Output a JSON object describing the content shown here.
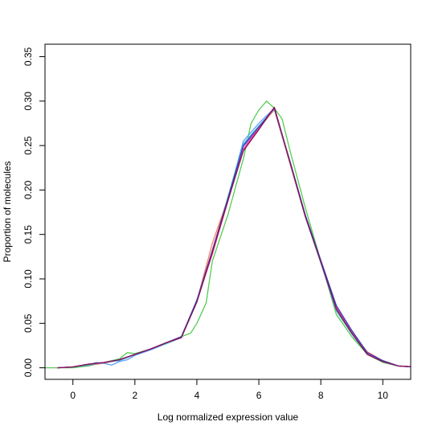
{
  "chart_data": {
    "type": "line",
    "title": "",
    "xlabel": "Log normalized expression value",
    "ylabel": "Proportion of molecules",
    "xlim": [
      -0.9,
      10.9
    ],
    "ylim": [
      -0.013,
      0.364
    ],
    "x_ticks": [
      0,
      2,
      4,
      6,
      8,
      10
    ],
    "x_tick_labels": [
      "0",
      "2",
      "4",
      "6",
      "8",
      "10"
    ],
    "y_ticks": [
      0.0,
      0.05,
      0.1,
      0.15,
      0.2,
      0.25,
      0.3,
      0.35
    ],
    "y_tick_labels": [
      "0.00",
      "0.05",
      "0.10",
      "0.15",
      "0.20",
      "0.25",
      "0.30",
      "0.35"
    ],
    "grid": false,
    "legend": "none",
    "series": [
      {
        "color": "#55cc55",
        "points": [
          [
            -1.0,
            0.0
          ],
          [
            -0.5,
            0.0
          ],
          [
            0.0,
            0.0
          ],
          [
            0.5,
            0.002
          ],
          [
            1.0,
            0.006
          ],
          [
            1.5,
            0.01
          ],
          [
            1.75,
            0.017
          ],
          [
            2.0,
            0.016
          ],
          [
            2.5,
            0.021
          ],
          [
            3.0,
            0.027
          ],
          [
            3.5,
            0.035
          ],
          [
            3.8,
            0.039
          ],
          [
            4.0,
            0.05
          ],
          [
            4.3,
            0.073
          ],
          [
            4.5,
            0.12
          ],
          [
            5.0,
            0.172
          ],
          [
            5.5,
            0.235
          ],
          [
            5.75,
            0.275
          ],
          [
            6.0,
            0.29
          ],
          [
            6.25,
            0.3
          ],
          [
            6.5,
            0.292
          ],
          [
            6.75,
            0.28
          ],
          [
            7.0,
            0.245
          ],
          [
            7.5,
            0.18
          ],
          [
            8.0,
            0.12
          ],
          [
            8.5,
            0.06
          ],
          [
            9.0,
            0.035
          ],
          [
            9.5,
            0.015
          ],
          [
            10.0,
            0.006
          ],
          [
            10.5,
            0.002
          ],
          [
            11.0,
            0.001
          ]
        ]
      },
      {
        "color": "#ff7f66",
        "points": [
          [
            -0.5,
            0.0
          ],
          [
            0.0,
            0.001
          ],
          [
            0.5,
            0.003
          ],
          [
            1.0,
            0.005
          ],
          [
            1.5,
            0.009
          ],
          [
            2.0,
            0.015
          ],
          [
            2.5,
            0.021
          ],
          [
            3.0,
            0.028
          ],
          [
            3.5,
            0.035
          ],
          [
            4.0,
            0.075
          ],
          [
            4.5,
            0.14
          ],
          [
            5.0,
            0.19
          ],
          [
            5.5,
            0.245
          ],
          [
            6.0,
            0.27
          ],
          [
            6.5,
            0.29
          ],
          [
            7.0,
            0.23
          ],
          [
            7.5,
            0.17
          ],
          [
            8.0,
            0.12
          ],
          [
            8.5,
            0.07
          ],
          [
            9.0,
            0.04
          ],
          [
            9.5,
            0.018
          ],
          [
            10.0,
            0.008
          ],
          [
            10.5,
            0.002
          ],
          [
            11.0,
            0.001
          ]
        ]
      },
      {
        "color": "#5aa0ff",
        "points": [
          [
            -0.5,
            0.0
          ],
          [
            0.0,
            0.001
          ],
          [
            0.5,
            0.003
          ],
          [
            0.75,
            0.006
          ],
          [
            1.0,
            0.005
          ],
          [
            1.25,
            0.003
          ],
          [
            1.5,
            0.007
          ],
          [
            1.75,
            0.009
          ],
          [
            2.0,
            0.014
          ],
          [
            2.5,
            0.02
          ],
          [
            3.0,
            0.027
          ],
          [
            3.5,
            0.034
          ],
          [
            4.0,
            0.075
          ],
          [
            4.5,
            0.13
          ],
          [
            5.0,
            0.19
          ],
          [
            5.5,
            0.255
          ],
          [
            6.0,
            0.275
          ],
          [
            6.5,
            0.292
          ],
          [
            7.0,
            0.232
          ],
          [
            7.5,
            0.17
          ],
          [
            8.0,
            0.118
          ],
          [
            8.5,
            0.066
          ],
          [
            9.0,
            0.04
          ],
          [
            9.5,
            0.016
          ],
          [
            10.0,
            0.007
          ],
          [
            10.5,
            0.002
          ],
          [
            11.0,
            0.001
          ]
        ]
      },
      {
        "color": "#44bbcc",
        "points": [
          [
            -0.5,
            0.0
          ],
          [
            0.0,
            0.001
          ],
          [
            0.5,
            0.003
          ],
          [
            1.0,
            0.006
          ],
          [
            1.5,
            0.008
          ],
          [
            2.0,
            0.015
          ],
          [
            2.5,
            0.021
          ],
          [
            3.0,
            0.027
          ],
          [
            3.5,
            0.034
          ],
          [
            4.0,
            0.074
          ],
          [
            4.5,
            0.13
          ],
          [
            5.0,
            0.192
          ],
          [
            5.5,
            0.252
          ],
          [
            6.0,
            0.272
          ],
          [
            6.5,
            0.291
          ],
          [
            7.0,
            0.231
          ],
          [
            7.5,
            0.17
          ],
          [
            8.0,
            0.118
          ],
          [
            8.5,
            0.064
          ],
          [
            9.0,
            0.038
          ],
          [
            9.5,
            0.015
          ],
          [
            10.0,
            0.007
          ],
          [
            10.5,
            0.002
          ],
          [
            11.0,
            0.001
          ]
        ]
      },
      {
        "color": "#9966ff",
        "points": [
          [
            -0.5,
            0.0
          ],
          [
            0.0,
            0.001
          ],
          [
            0.5,
            0.004
          ],
          [
            1.0,
            0.006
          ],
          [
            1.5,
            0.009
          ],
          [
            2.0,
            0.015
          ],
          [
            2.5,
            0.021
          ],
          [
            3.0,
            0.028
          ],
          [
            3.5,
            0.034
          ],
          [
            4.0,
            0.076
          ],
          [
            4.5,
            0.128
          ],
          [
            5.0,
            0.188
          ],
          [
            5.5,
            0.249
          ],
          [
            6.0,
            0.27
          ],
          [
            6.5,
            0.292
          ],
          [
            7.0,
            0.232
          ],
          [
            7.5,
            0.171
          ],
          [
            8.0,
            0.12
          ],
          [
            8.5,
            0.068
          ],
          [
            9.0,
            0.041
          ],
          [
            9.5,
            0.016
          ],
          [
            10.0,
            0.008
          ],
          [
            10.5,
            0.002
          ],
          [
            11.0,
            0.001
          ]
        ]
      },
      {
        "color": "#ff44aa",
        "points": [
          [
            -0.5,
            0.0
          ],
          [
            0.0,
            0.001
          ],
          [
            0.5,
            0.004
          ],
          [
            1.0,
            0.006
          ],
          [
            1.5,
            0.009
          ],
          [
            2.0,
            0.015
          ],
          [
            2.5,
            0.021
          ],
          [
            3.0,
            0.028
          ],
          [
            3.5,
            0.034
          ],
          [
            4.0,
            0.075
          ],
          [
            4.5,
            0.128
          ],
          [
            5.0,
            0.187
          ],
          [
            5.5,
            0.246
          ],
          [
            6.0,
            0.27
          ],
          [
            6.5,
            0.293
          ],
          [
            7.0,
            0.232
          ],
          [
            7.5,
            0.171
          ],
          [
            8.0,
            0.12
          ],
          [
            8.5,
            0.068
          ],
          [
            9.0,
            0.04
          ],
          [
            9.5,
            0.016
          ],
          [
            10.0,
            0.008
          ],
          [
            10.5,
            0.002
          ],
          [
            11.0,
            0.001
          ]
        ]
      },
      {
        "color": "#3344bb",
        "points": [
          [
            -0.5,
            0.0
          ],
          [
            0.0,
            0.001
          ],
          [
            0.5,
            0.004
          ],
          [
            1.0,
            0.006
          ],
          [
            1.5,
            0.009
          ],
          [
            2.0,
            0.015
          ],
          [
            2.5,
            0.021
          ],
          [
            3.0,
            0.028
          ],
          [
            3.5,
            0.035
          ],
          [
            4.0,
            0.076
          ],
          [
            4.5,
            0.132
          ],
          [
            5.0,
            0.19
          ],
          [
            5.5,
            0.25
          ],
          [
            6.0,
            0.271
          ],
          [
            6.5,
            0.292
          ],
          [
            7.0,
            0.233
          ],
          [
            7.5,
            0.172
          ],
          [
            8.0,
            0.121
          ],
          [
            8.5,
            0.07
          ],
          [
            9.0,
            0.042
          ],
          [
            9.5,
            0.017
          ],
          [
            10.0,
            0.008
          ],
          [
            10.5,
            0.002
          ],
          [
            11.0,
            0.001
          ]
        ]
      },
      {
        "color": "#881155",
        "points": [
          [
            -0.5,
            0.0
          ],
          [
            0.0,
            0.001
          ],
          [
            0.5,
            0.004
          ],
          [
            1.0,
            0.006
          ],
          [
            1.5,
            0.009
          ],
          [
            2.0,
            0.015
          ],
          [
            2.5,
            0.021
          ],
          [
            3.0,
            0.028
          ],
          [
            3.5,
            0.034
          ],
          [
            4.0,
            0.074
          ],
          [
            4.5,
            0.13
          ],
          [
            5.0,
            0.188
          ],
          [
            5.5,
            0.244
          ],
          [
            6.0,
            0.268
          ],
          [
            6.5,
            0.293
          ],
          [
            7.0,
            0.232
          ],
          [
            7.5,
            0.17
          ],
          [
            8.0,
            0.119
          ],
          [
            8.5,
            0.066
          ],
          [
            9.0,
            0.039
          ],
          [
            9.5,
            0.015
          ],
          [
            10.0,
            0.007
          ],
          [
            10.5,
            0.002
          ],
          [
            11.0,
            0.001
          ]
        ]
      }
    ]
  }
}
